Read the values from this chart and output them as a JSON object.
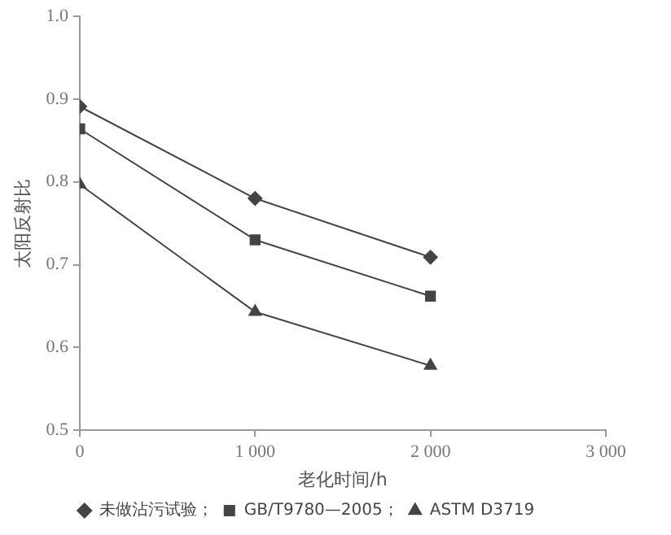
{
  "chart_data": {
    "type": "line",
    "xlabel": "老化时间/h",
    "ylabel": "太阳反射比",
    "x": [
      0,
      1000,
      2000
    ],
    "xlim": [
      0,
      3000
    ],
    "xticks": [
      0,
      {
        "value": 1000,
        "label": "1 000"
      },
      {
        "value": 2000,
        "label": "2 000"
      },
      {
        "value": 3000,
        "label": "3 000"
      }
    ],
    "ylim": [
      0.5,
      1.0
    ],
    "yticks": [
      0.5,
      0.6,
      0.7,
      0.8,
      0.9,
      {
        "value": 1.0,
        "label": "1.0"
      }
    ],
    "grid": false,
    "legend": "bottom",
    "line_style": "solid",
    "series": [
      {
        "name": "未做沾污试验；",
        "color": "#444444",
        "marker": "diamond",
        "values": [
          0.891,
          0.78,
          0.709
        ]
      },
      {
        "name": "GB/T9780—2005；",
        "color": "#444444",
        "marker": "square",
        "values": [
          0.864,
          0.73,
          0.662
        ]
      },
      {
        "name": "ASTM D3719",
        "color": "#444444",
        "marker": "triangle",
        "values": [
          0.797,
          0.643,
          0.578
        ]
      }
    ]
  }
}
